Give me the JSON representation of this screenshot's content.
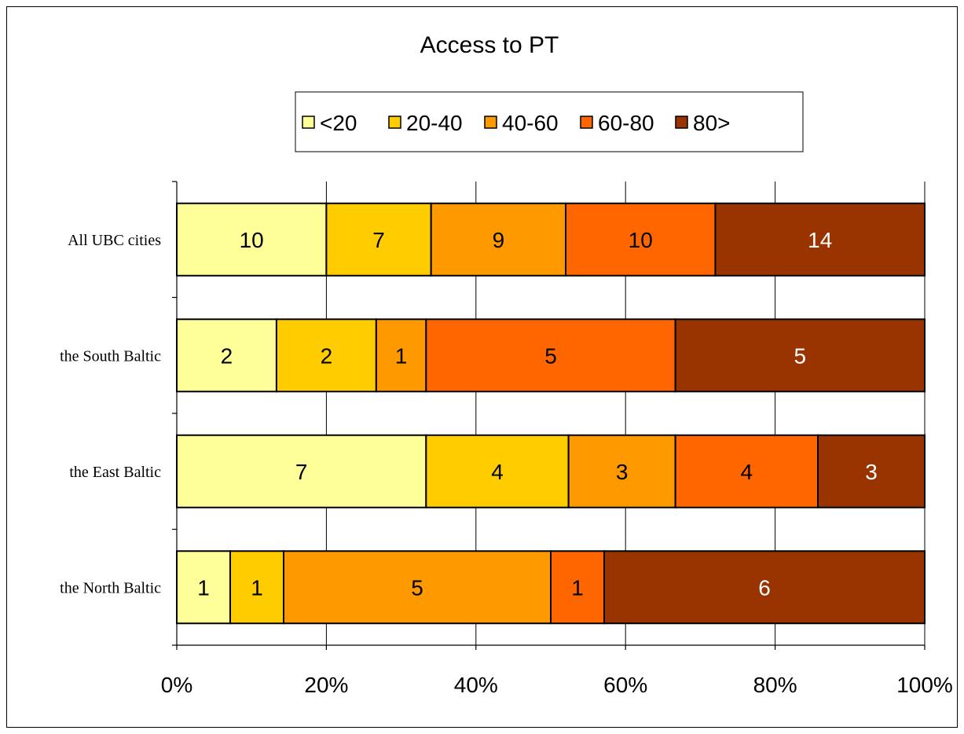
{
  "chart_data": {
    "type": "bar",
    "orientation": "horizontal",
    "stacked": "percent",
    "title": "Access to PT",
    "categories": [
      "All UBC cities",
      "the South Baltic",
      "the East Baltic",
      "the North Baltic"
    ],
    "series": [
      {
        "name": "<20",
        "color": "#FFFF99",
        "label_color": "#000000",
        "values": [
          10,
          2,
          7,
          1
        ]
      },
      {
        "name": "20-40",
        "color": "#FFCC00",
        "label_color": "#000000",
        "values": [
          7,
          2,
          4,
          1
        ]
      },
      {
        "name": "40-60",
        "color": "#FF9900",
        "label_color": "#000000",
        "values": [
          9,
          1,
          3,
          5
        ]
      },
      {
        "name": "60-80",
        "color": "#FF6600",
        "label_color": "#000000",
        "values": [
          10,
          5,
          4,
          1
        ]
      },
      {
        "name": "80>",
        "color": "#993300",
        "label_color": "#FFFFFF",
        "values": [
          14,
          5,
          3,
          6
        ]
      }
    ],
    "x_ticks": [
      "0%",
      "20%",
      "40%",
      "60%",
      "80%",
      "100%"
    ],
    "xlim": [
      0,
      100
    ],
    "grid": true,
    "legend": "top-center"
  }
}
